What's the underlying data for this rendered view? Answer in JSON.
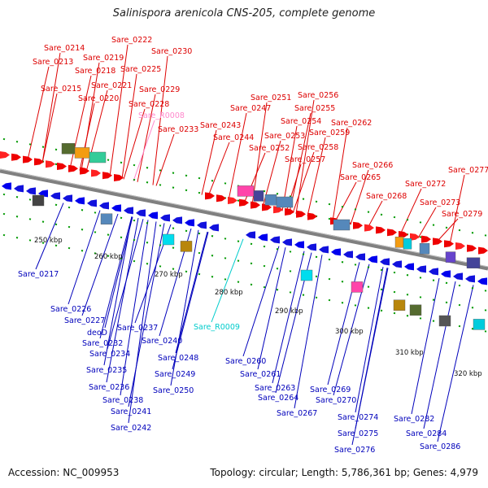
{
  "title": "Salinispora arenicola CNS-205, complete genome",
  "footer": {
    "accession": "Accession: NC_009953",
    "summary": "Topology: circular; Length: 5,786,361 bp; Genes: 4,979"
  },
  "colors": {
    "forward_label": "#dd0000",
    "reverse_label": "#0000bb",
    "rna_label_forward": "#ff88cc",
    "rna_label_reverse": "#00cccc",
    "backbone": "#808080",
    "tick": "#009900"
  },
  "scale": {
    "ticks": [
      "250 kbp",
      "260 kbp",
      "270 kbp",
      "280 kbp",
      "290 kbp",
      "300 kbp",
      "310 kbp",
      "320 kbp"
    ]
  },
  "forward_genes": [
    "Sare_0213",
    "Sare_0214",
    "Sare_0215",
    "Sare_0218",
    "Sare_0219",
    "Sare_0220",
    "Sare_0221",
    "Sare_0222",
    "Sare_0225",
    "Sare_0228",
    "Sare_0229",
    "Sare_0230",
    "Sare_R0008",
    "Sare_0233",
    "Sare_0243",
    "Sare_0244",
    "Sare_0247",
    "Sare_0251",
    "Sare_0252",
    "Sare_0253",
    "Sare_0254",
    "Sare_0255",
    "Sare_0256",
    "Sare_0257",
    "Sare_0258",
    "Sare_0259",
    "Sare_0262",
    "Sare_0265",
    "Sare_0266",
    "Sare_0268",
    "Sare_0272",
    "Sare_0273",
    "Sare_0277",
    "Sare_0279"
  ],
  "reverse_genes": [
    "Sare_0217",
    "Sare_0226",
    "Sare_0227",
    "deoD",
    "Sare_0232",
    "Sare_0234",
    "Sare_0235",
    "Sare_0236",
    "Sare_0237",
    "Sare_0238",
    "Sare_0240",
    "Sare_0241",
    "Sare_0242",
    "Sare_0248",
    "Sare_0249",
    "Sare_0250",
    "Sare_R0009",
    "Sare_0260",
    "Sare_0261",
    "Sare_0263",
    "Sare_0264",
    "Sare_0267",
    "Sare_0269",
    "Sare_0270",
    "Sare_0274",
    "Sare_0275",
    "Sare_0276",
    "Sare_0282",
    "Sare_0284",
    "Sare_0286"
  ]
}
